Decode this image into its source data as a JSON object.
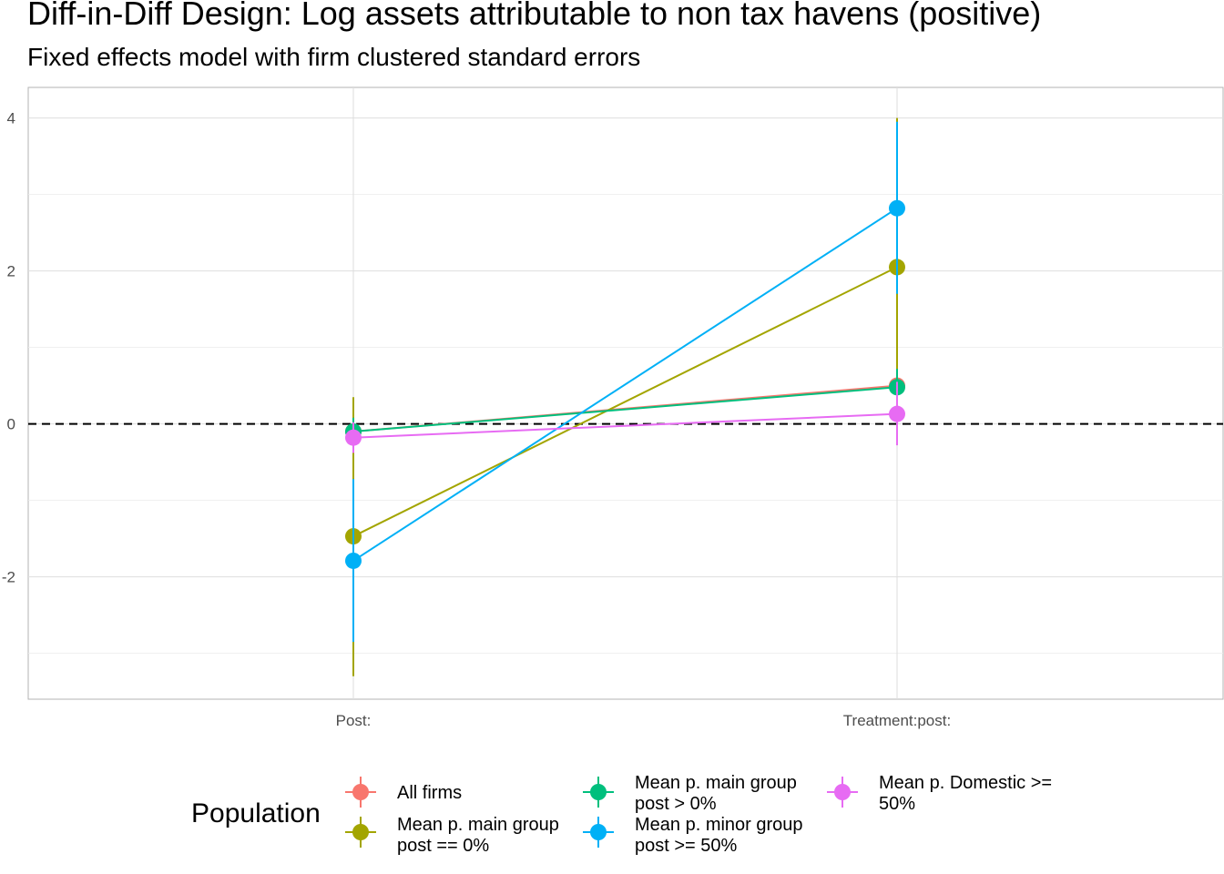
{
  "chart_data": {
    "type": "scatter",
    "title": "Diff-in-Diff Design: Log assets attributable to non tax havens (positive)",
    "subtitle": "Fixed effects model with firm clustered standard errors",
    "xlabel": "",
    "ylabel": "",
    "categories": [
      "Post:",
      "Treatment:post:"
    ],
    "ylim": [
      -3.6,
      4.4
    ],
    "yticks": [
      -2,
      0,
      2,
      4
    ],
    "ytick_labels": [
      "-2",
      "0",
      "2",
      "4"
    ],
    "reference_line": 0,
    "legend": {
      "title": "Population",
      "position": "bottom"
    },
    "series": [
      {
        "name": "All firms",
        "label_lines": [
          "All firms"
        ],
        "color": "#F8766D",
        "values": [
          -0.1,
          0.5
        ],
        "lower": [
          -0.3,
          0.3
        ],
        "upper": [
          0.1,
          0.7
        ]
      },
      {
        "name": "Mean p. main group post == 0%",
        "label_lines": [
          "Mean p. main group",
          "post == 0%"
        ],
        "color": "#A3A500",
        "values": [
          -1.47,
          2.05
        ],
        "lower": [
          -3.3,
          0.1
        ],
        "upper": [
          0.35,
          4.0
        ]
      },
      {
        "name": "Mean p. main group post > 0%",
        "label_lines": [
          "Mean p. main group",
          "post > 0%"
        ],
        "color": "#00BF7D",
        "values": [
          -0.1,
          0.48
        ],
        "lower": [
          -0.28,
          0.25
        ],
        "upper": [
          0.08,
          0.72
        ]
      },
      {
        "name": "Mean p. minor group post >= 50%",
        "label_lines": [
          "Mean p. minor group",
          "post >= 50%"
        ],
        "color": "#00B0F6",
        "values": [
          -1.79,
          2.82
        ],
        "lower": [
          -2.85,
          1.7
        ],
        "upper": [
          -0.72,
          3.95
        ]
      },
      {
        "name": "Mean p. Domestic >= 50%",
        "label_lines": [
          "Mean p. Domestic >=",
          "50%"
        ],
        "color": "#E76BF3",
        "values": [
          -0.18,
          0.13
        ],
        "lower": [
          -0.38,
          -0.28
        ],
        "upper": [
          0.02,
          0.55
        ]
      }
    ]
  }
}
